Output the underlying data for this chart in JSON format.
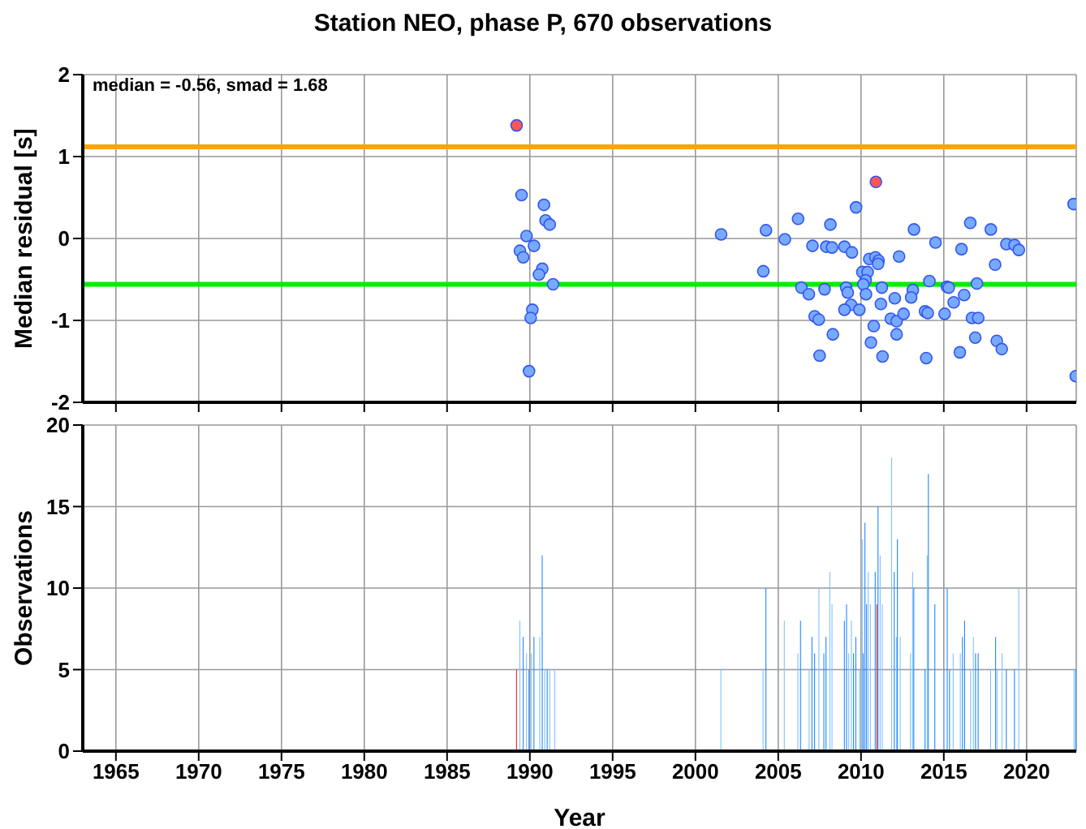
{
  "chart_data": [
    {
      "type": "scatter",
      "title": "Station NEO, phase P, 670 observations",
      "ylabel": "Median residual [s]",
      "annotations": [
        "median = -0.56, smad = 1.68"
      ],
      "xlim": [
        1963,
        2023
      ],
      "xticks": [
        1965,
        1970,
        1975,
        1980,
        1985,
        1990,
        1995,
        2000,
        2005,
        2010,
        2015,
        2020
      ],
      "ylim": [
        -2,
        2
      ],
      "yticks": [
        -2,
        -1,
        0,
        1,
        2
      ],
      "grid": true,
      "tick_labels": "y",
      "marker": "circle",
      "ref_lines": [
        {
          "axis": "y",
          "value": 1.12,
          "color": "#ffa500"
        },
        {
          "axis": "y",
          "value": -0.56,
          "color": "#00ee00"
        }
      ],
      "series": [
        {
          "color": "#77aaff",
          "x": [
            1989.5,
            1990.85,
            1990.95,
            1991.2,
            1989.8,
            1990.25,
            1989.4,
            1989.6,
            1990.75,
            1990.55,
            1991.4,
            1990.15,
            1990.05,
            1989.95,
            2001.55,
            2004.26,
            2004.1,
            2006.2,
            2005.4,
            2007.07,
            2007.9,
            2008.25,
            2008.15,
            2009.0,
            2009.45,
            2009.7,
            2006.4,
            2006.85,
            2007.8,
            2007.2,
            2007.45,
            2008.3,
            2007.5,
            2009.1,
            2009.2,
            2009.4,
            2009.0,
            2009.9,
            2010.08,
            2010.4,
            2010.28,
            2010.14,
            2010.3,
            2010.5,
            2010.87,
            2011.06,
            2011.03,
            2011.26,
            2011.2,
            2010.77,
            2010.6,
            2011.3,
            2012.3,
            2012.04,
            2011.8,
            2012.15,
            2012.15,
            2012.57,
            2013.2,
            2013.13,
            2013.03,
            2014.13,
            2013.87,
            2014.03,
            2013.94,
            2014.5,
            2015.19,
            2015.3,
            2015.05,
            2015.6,
            2016.07,
            2016.6,
            2016.23,
            2016.7,
            2017.08,
            2017.0,
            2016.9,
            2015.97,
            2017.84,
            2018.1,
            2018.2,
            2018.5,
            2018.78,
            2019.27,
            2019.53,
            2022.84,
            2022.97
          ],
          "values": [
            0.53,
            0.41,
            0.22,
            0.17,
            0.03,
            -0.09,
            -0.15,
            -0.23,
            -0.37,
            -0.44,
            -0.56,
            -0.87,
            -0.97,
            -1.62,
            0.05,
            0.1,
            -0.4,
            0.24,
            -0.01,
            -0.09,
            -0.1,
            -0.11,
            0.17,
            -0.1,
            -0.17,
            0.38,
            -0.6,
            -0.68,
            -0.62,
            -0.95,
            -0.99,
            -1.17,
            -1.43,
            -0.6,
            -0.66,
            -0.81,
            -0.87,
            -0.87,
            -0.41,
            -0.41,
            -0.51,
            -0.56,
            -0.68,
            -0.25,
            -0.23,
            -0.27,
            -0.31,
            -0.6,
            -0.8,
            -1.07,
            -1.27,
            -1.44,
            -0.22,
            -0.73,
            -0.98,
            -1.01,
            -1.17,
            -0.92,
            0.11,
            -0.63,
            -0.72,
            -0.52,
            -0.89,
            -0.91,
            -1.46,
            -0.05,
            -0.59,
            -0.6,
            -0.92,
            -0.78,
            -0.13,
            0.19,
            -0.69,
            -0.97,
            -0.97,
            -0.55,
            -1.21,
            -1.39,
            0.11,
            -0.32,
            -1.25,
            -1.35,
            -0.07,
            -0.08,
            -0.14,
            0.42,
            -1.68
          ]
        },
        {
          "color": "#ff5555",
          "x": [
            1989.2,
            2010.9
          ],
          "values": [
            1.38,
            0.69
          ]
        }
      ]
    },
    {
      "type": "bar",
      "xlabel": "Year",
      "ylabel": "Observations",
      "xlim": [
        1963,
        2023
      ],
      "xticks": [
        1965,
        1970,
        1975,
        1980,
        1985,
        1990,
        1995,
        2000,
        2005,
        2010,
        2015,
        2020
      ],
      "ylim": [
        0,
        20
      ],
      "yticks": [
        0,
        5,
        10,
        15,
        20
      ],
      "grid": true,
      "x": [
        1989.2,
        1989.4,
        1989.6,
        1989.8,
        1989.95,
        1990.1,
        1990.25,
        1990.6,
        1990.75,
        1990.9,
        1991.05,
        1991.2,
        1991.5,
        2001.54,
        2004.09,
        2004.26,
        2005.37,
        2006.19,
        2006.35,
        2006.87,
        2007.04,
        2007.2,
        2007.46,
        2007.76,
        2007.89,
        2008.12,
        2008.25,
        2009.0,
        2009.13,
        2009.26,
        2009.42,
        2009.55,
        2009.69,
        2009.91,
        2010.08,
        2010.14,
        2010.24,
        2010.34,
        2010.44,
        2010.57,
        2010.86,
        2010.96,
        2011.03,
        2011.16,
        2011.29,
        2011.85,
        2012.01,
        2012.14,
        2012.2,
        2012.37,
        2012.99,
        2013.12,
        2013.19,
        2013.87,
        2014.0,
        2014.07,
        2014.46,
        2015.02,
        2015.21,
        2015.35,
        2015.57,
        2016.0,
        2016.13,
        2016.26,
        2016.62,
        2016.79,
        2016.92,
        2017.08,
        2017.83,
        2018.13,
        2018.22,
        2018.52,
        2018.78,
        2019.27,
        2019.53,
        2022.87,
        2022.97
      ],
      "values": [
        5,
        8,
        7,
        6,
        5,
        6,
        7,
        7,
        12,
        5,
        5,
        5,
        5,
        5,
        5,
        10,
        8,
        6,
        8,
        5,
        7,
        6,
        10,
        6,
        7,
        11,
        9,
        8,
        9,
        6,
        8,
        6,
        7,
        5,
        13,
        6,
        14,
        9,
        11,
        9,
        11,
        9,
        15,
        12,
        9,
        18,
        11,
        7,
        13,
        7,
        6,
        11,
        10,
        5,
        12,
        17,
        9,
        5,
        10,
        5,
        6,
        6,
        7,
        8,
        5,
        7,
        6,
        6,
        5,
        7,
        5,
        6,
        5,
        5,
        10,
        5,
        5
      ],
      "colors": [
        "#ff2222",
        "#80c0ff",
        "#2288ff",
        "#80c0ff",
        "#2288ff",
        "#80c0ff",
        "#2288ff",
        "#80c0ff",
        "#2288ff",
        "#80c0ff",
        "#2288ff",
        "#80c0ff",
        "#80c0ff",
        "#80c0ff",
        "#80c0ff",
        "#2288ff",
        "#80c0ff",
        "#80c0ff",
        "#2288ff",
        "#80c0ff",
        "#2288ff",
        "#2288ff",
        "#80c0ff",
        "#2288ff",
        "#2288ff",
        "#80c0ff",
        "#80c0ff",
        "#2288ff",
        "#2288ff",
        "#80c0ff",
        "#80c0ff",
        "#2288ff",
        "#2288ff",
        "#80c0ff",
        "#80c0ff",
        "#2288ff",
        "#2288ff",
        "#2288ff",
        "#80c0ff",
        "#80c0ff",
        "#2288ff",
        "#ff2222",
        "#2288ff",
        "#80c0ff",
        "#80c0ff",
        "#80c0ff",
        "#2288ff",
        "#80c0ff",
        "#2288ff",
        "#80c0ff",
        "#80c0ff",
        "#80c0ff",
        "#2288ff",
        "#2288ff",
        "#80c0ff",
        "#2288ff",
        "#2288ff",
        "#80c0ff",
        "#2288ff",
        "#2288ff",
        "#80c0ff",
        "#80c0ff",
        "#2288ff",
        "#2288ff",
        "#80c0ff",
        "#80c0ff",
        "#2288ff",
        "#2288ff",
        "#80c0ff",
        "#2288ff",
        "#80c0ff",
        "#80c0ff",
        "#2288ff",
        "#2288ff",
        "#80c0ff",
        "#80c0ff",
        "#2288ff"
      ]
    }
  ]
}
